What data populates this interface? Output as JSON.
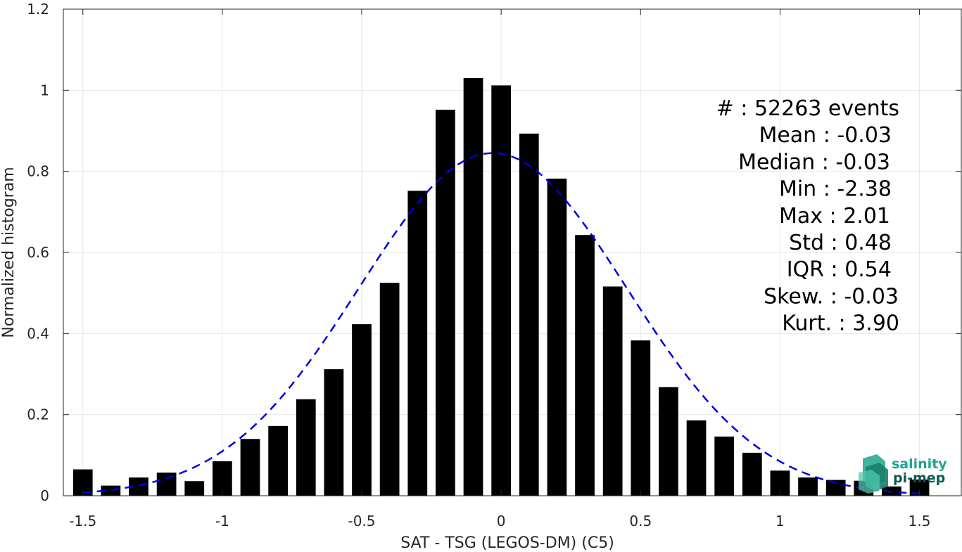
{
  "chart_data": {
    "type": "bar",
    "xlabel": "SAT - TSG (LEGOS-DM) (C5)",
    "ylabel": "Normalized histogram",
    "xlim": [
      -1.57,
      1.65
    ],
    "ylim": [
      0,
      1.2
    ],
    "x_ticks": [
      "-1.5",
      "-1",
      "-0.5",
      "0",
      "0.5",
      "1",
      "1.5"
    ],
    "x_tick_values": [
      -1.5,
      -1,
      -0.5,
      0,
      0.5,
      1,
      1.5
    ],
    "y_ticks": [
      "0",
      "0.2",
      "0.4",
      "0.6",
      "0.8",
      "1",
      "1.2"
    ],
    "y_tick_values": [
      0,
      0.2,
      0.4,
      0.6,
      0.8,
      1.0,
      1.2
    ],
    "grid": true,
    "bar_color": "#000000",
    "bin_width": 0.1,
    "bars": {
      "x": [
        -1.5,
        -1.4,
        -1.3,
        -1.2,
        -1.1,
        -1.0,
        -0.9,
        -0.8,
        -0.7,
        -0.6,
        -0.5,
        -0.4,
        -0.3,
        -0.2,
        -0.1,
        0.0,
        0.1,
        0.2,
        0.3,
        0.4,
        0.5,
        0.6,
        0.7,
        0.8,
        0.9,
        1.0,
        1.1,
        1.2,
        1.3,
        1.4,
        1.5
      ],
      "values": [
        0.065,
        0.025,
        0.045,
        0.057,
        0.036,
        0.085,
        0.14,
        0.172,
        0.238,
        0.312,
        0.423,
        0.525,
        0.752,
        0.952,
        1.03,
        1.012,
        0.893,
        0.782,
        0.643,
        0.516,
        0.383,
        0.268,
        0.186,
        0.146,
        0.106,
        0.062,
        0.045,
        0.039,
        0.037,
        0.023,
        0.04
      ]
    },
    "fit": {
      "type": "gaussian",
      "mean": -0.03,
      "std": 0.48,
      "peak": 0.845,
      "x_range": [
        -1.5,
        1.5
      ],
      "color": "#0000e0",
      "style": "dashed"
    }
  },
  "stats": {
    "lines": [
      "#  : 52263 events",
      "Mean : -0.03",
      "Median : -0.03",
      "Min : -2.38",
      "Max : 2.01",
      "Std : 0.48",
      "IQR : 0.54",
      "Skew. : -0.03",
      "Kurt. : 3.90"
    ]
  },
  "logo": {
    "line1": "salinity",
    "line2": "pi-mep",
    "color": "#1fa58c",
    "dark_color": "#0b5a4e"
  }
}
